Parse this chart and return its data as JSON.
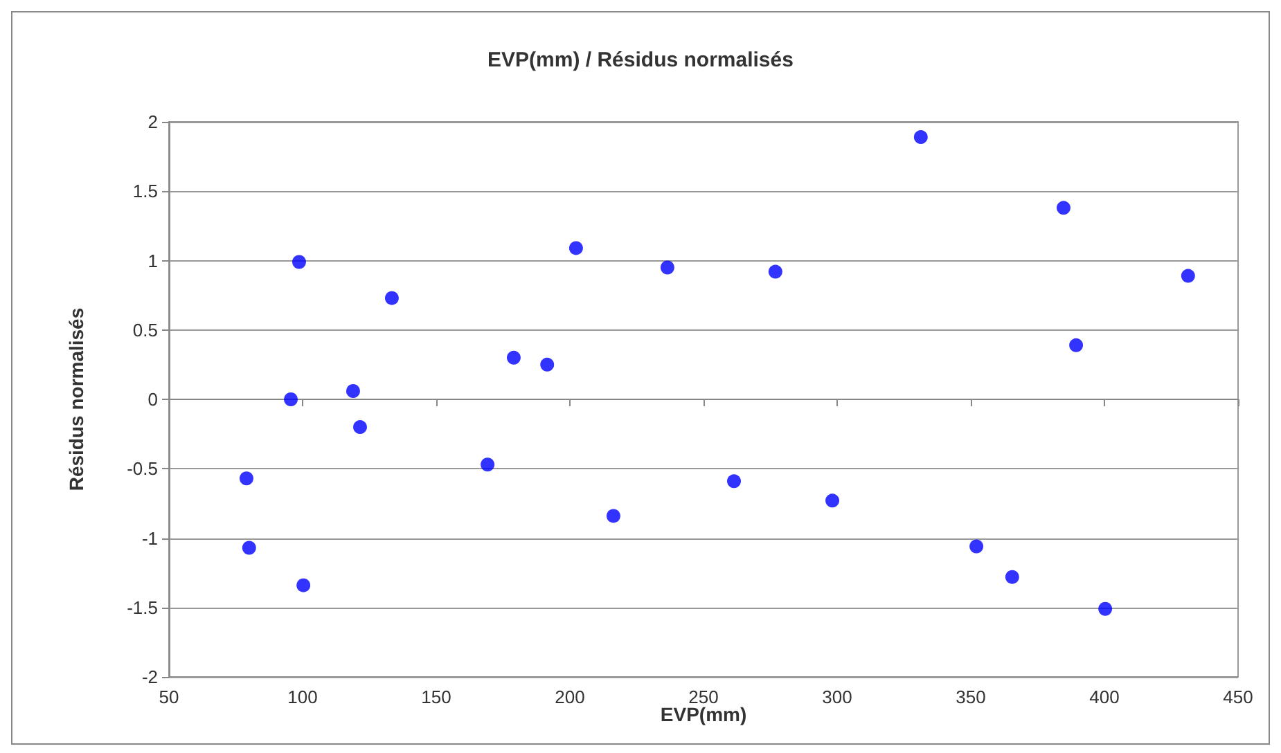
{
  "chart_data": {
    "type": "scatter",
    "title": "EVP(mm) / Résidus normalisés",
    "xlabel": "EVP(mm)",
    "ylabel": "Résidus normalisés",
    "x": [
      79,
      80,
      95.6,
      98.7,
      100.3,
      118.9,
      121.5,
      133.4,
      169.2,
      179,
      191.5,
      202.3,
      216.3,
      236.5,
      261.4,
      276.9,
      298.2,
      331.3,
      352.1,
      365.5,
      384.7,
      389.4,
      400.3,
      431.3
    ],
    "values": [
      -0.57,
      -1.07,
      0,
      0.99,
      -1.34,
      0.06,
      -0.2,
      0.73,
      -0.47,
      0.3,
      0.25,
      1.09,
      -0.84,
      0.95,
      -0.59,
      0.92,
      -0.73,
      1.89,
      -1.06,
      -1.28,
      1.38,
      0.39,
      -1.51,
      0.89
    ],
    "color": "#0000ff",
    "marker": "circle",
    "xlim": [
      50,
      450
    ],
    "xticks": [
      50,
      100,
      150,
      200,
      250,
      300,
      350,
      400,
      450
    ],
    "ylim": [
      -2,
      2
    ],
    "yticks": [
      -2,
      -1.5,
      -1,
      -0.5,
      0,
      0.5,
      1,
      1.5,
      2
    ],
    "grid": "y"
  }
}
